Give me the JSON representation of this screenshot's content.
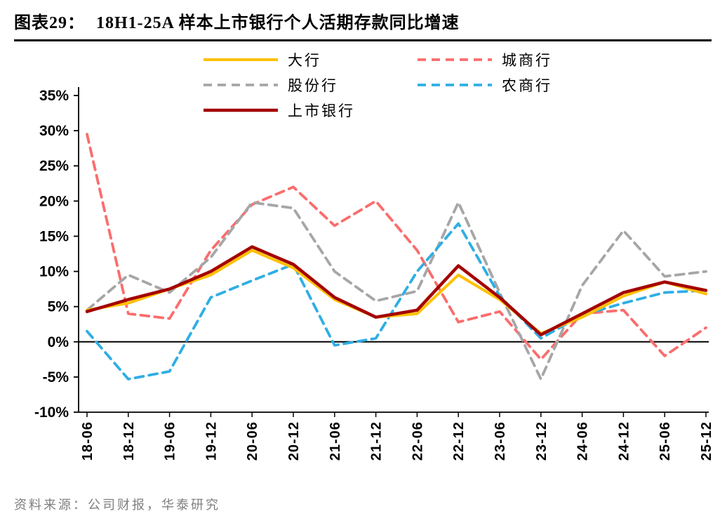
{
  "header": {
    "label": "图表29：",
    "title": "18H1-25A 样本上市银行个人活期存款同比增速"
  },
  "footer": {
    "source": "资料来源：公司财报，华泰研究"
  },
  "chart_data": {
    "type": "line",
    "title": "18H1-25A 样本上市银行个人活期存款同比增速",
    "xlabel": "",
    "ylabel": "",
    "grid": false,
    "legend_position": "top",
    "ylim": [
      -10,
      35
    ],
    "ytick_step": 5,
    "ytick_labels": [
      "35%",
      "30%",
      "25%",
      "20%",
      "15%",
      "10%",
      "5%",
      "0%",
      "-5%",
      "-10%"
    ],
    "categories": [
      "18-06",
      "18-12",
      "19-06",
      "19-12",
      "20-06",
      "20-12",
      "21-06",
      "21-12",
      "22-06",
      "22-12",
      "23-06",
      "23-12",
      "24-06",
      "24-12",
      "25-06",
      "25-12"
    ],
    "series": [
      {
        "name": "大行",
        "color": "#FFC000",
        "dashed": false,
        "width": 4,
        "values": [
          4.5,
          5.5,
          7.5,
          9.5,
          13.0,
          10.5,
          6.0,
          3.5,
          4.0,
          9.5,
          6.0,
          1.2,
          3.5,
          6.5,
          8.5,
          6.8
        ]
      },
      {
        "name": "城商行",
        "color": "#FA6D6D",
        "dashed": true,
        "width": 3.8,
        "values": [
          29.5,
          4.0,
          3.3,
          13.0,
          19.5,
          22.0,
          16.5,
          20.0,
          13.0,
          2.8,
          4.3,
          -2.5,
          4.0,
          4.5,
          -2.0,
          2.0
        ]
      },
      {
        "name": "股份行",
        "color": "#A6A6A6",
        "dashed": true,
        "width": 3.8,
        "values": [
          4.5,
          9.5,
          7.0,
          12.0,
          19.8,
          19.0,
          10.0,
          5.8,
          7.2,
          19.8,
          7.0,
          -5.3,
          8.0,
          15.8,
          9.3,
          10.0
        ]
      },
      {
        "name": "农商行",
        "color": "#2FAEE4",
        "dashed": true,
        "width": 3.8,
        "values": [
          1.5,
          -5.3,
          -4.2,
          6.3,
          8.7,
          11.0,
          -0.5,
          0.5,
          10.0,
          16.8,
          6.5,
          0.5,
          3.8,
          5.5,
          7.0,
          7.3
        ]
      },
      {
        "name": "上市银行",
        "color": "#A40000",
        "dashed": false,
        "width": 4.5,
        "values": [
          4.3,
          6.0,
          7.5,
          10.0,
          13.5,
          11.0,
          6.3,
          3.5,
          4.5,
          10.8,
          6.3,
          1.0,
          4.0,
          7.0,
          8.5,
          7.3
        ]
      }
    ]
  }
}
